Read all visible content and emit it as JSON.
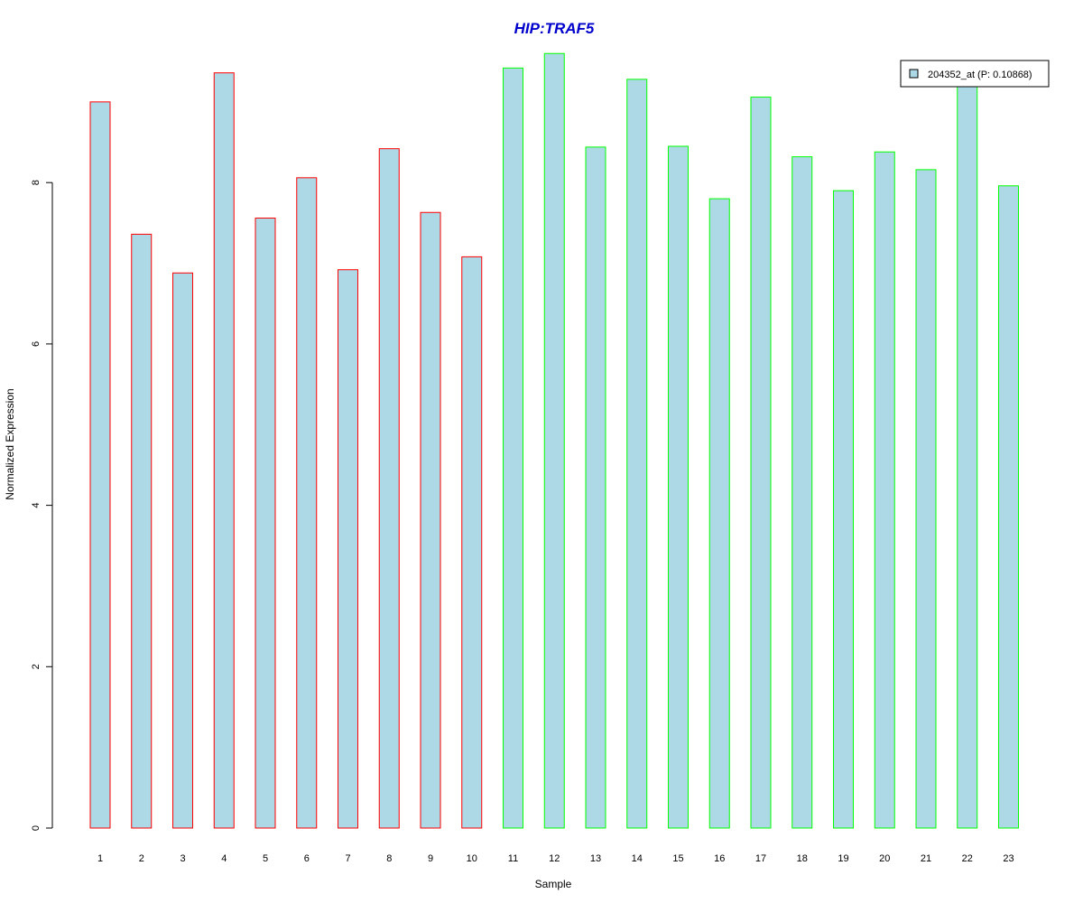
{
  "chart_data": {
    "type": "bar",
    "title": "HIP:TRAF5",
    "xlabel": "Sample",
    "ylabel": "Normalized Expression",
    "categories": [
      "1",
      "2",
      "3",
      "4",
      "5",
      "6",
      "7",
      "8",
      "9",
      "10",
      "11",
      "12",
      "13",
      "14",
      "15",
      "16",
      "17",
      "18",
      "19",
      "20",
      "21",
      "22",
      "23"
    ],
    "values": [
      9.0,
      7.36,
      6.88,
      9.36,
      7.56,
      8.06,
      6.92,
      8.42,
      7.63,
      7.08,
      9.42,
      9.6,
      8.44,
      9.28,
      8.45,
      7.8,
      9.06,
      8.32,
      7.9,
      8.38,
      8.16,
      9.28,
      7.96
    ],
    "groups": [
      "red",
      "red",
      "red",
      "red",
      "red",
      "red",
      "red",
      "red",
      "red",
      "red",
      "green",
      "green",
      "green",
      "green",
      "green",
      "green",
      "green",
      "green",
      "green",
      "green",
      "green",
      "green",
      "green"
    ],
    "bar_fill": "#add8e6",
    "group_colors": {
      "red": "#ff0000",
      "green": "#00ff00"
    },
    "title_color": "#0000cc",
    "yticks": [
      "0",
      "2",
      "4",
      "6",
      "8"
    ],
    "ylim": [
      0,
      9.7
    ],
    "grid": false,
    "legend": {
      "label": "204352_at (P: 0.10868)",
      "placement": "top-right"
    }
  }
}
